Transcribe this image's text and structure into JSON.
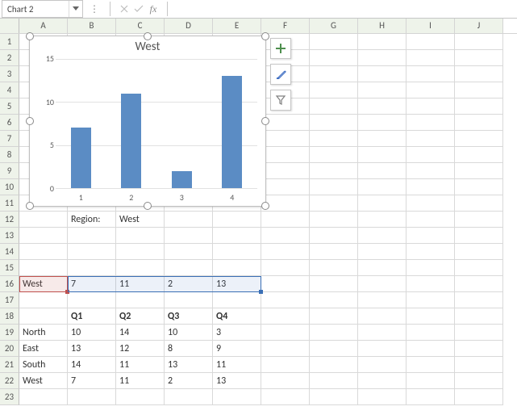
{
  "formula_bar": {
    "name_box": "Chart 2",
    "fx_label": "fx"
  },
  "columns": [
    "A",
    "B",
    "C",
    "D",
    "E",
    "F",
    "G",
    "H",
    "I",
    "J"
  ],
  "row_count": 23,
  "cells": {
    "r12": {
      "B": "Region:",
      "C": "West"
    },
    "r16": {
      "A": "West",
      "B": "7",
      "C": "11",
      "D": "2",
      "E": "13"
    },
    "r18": {
      "B": "Q1",
      "C": "Q2",
      "D": "Q3",
      "E": "Q4"
    },
    "r19": {
      "A": "North",
      "B": "10",
      "C": "14",
      "D": "10",
      "E": "3"
    },
    "r20": {
      "A": "East",
      "B": "13",
      "C": "12",
      "D": "8",
      "E": "9"
    },
    "r21": {
      "A": "South",
      "B": "14",
      "C": "11",
      "D": "13",
      "E": "11"
    },
    "r22": {
      "A": "West",
      "B": "7",
      "C": "11",
      "D": "2",
      "E": "13"
    }
  },
  "chart": {
    "type": "bar",
    "title": "West",
    "title_fontsize": 15,
    "categories": [
      "1",
      "2",
      "3",
      "4"
    ],
    "values": [
      7,
      11,
      2,
      13
    ],
    "bar_color": "#5b8cc4",
    "ylim": [
      0,
      15
    ],
    "ytick_step": 5,
    "yticks": [
      "15",
      "10",
      "5",
      "0"
    ],
    "grid_color": "#e2e2e2",
    "background_color": "#ffffff",
    "bar_width": 0.4,
    "tool_icons": {
      "plus_color": "#4e8f4e",
      "brush_color": "#4472c4",
      "funnel_color": "#808080"
    }
  }
}
